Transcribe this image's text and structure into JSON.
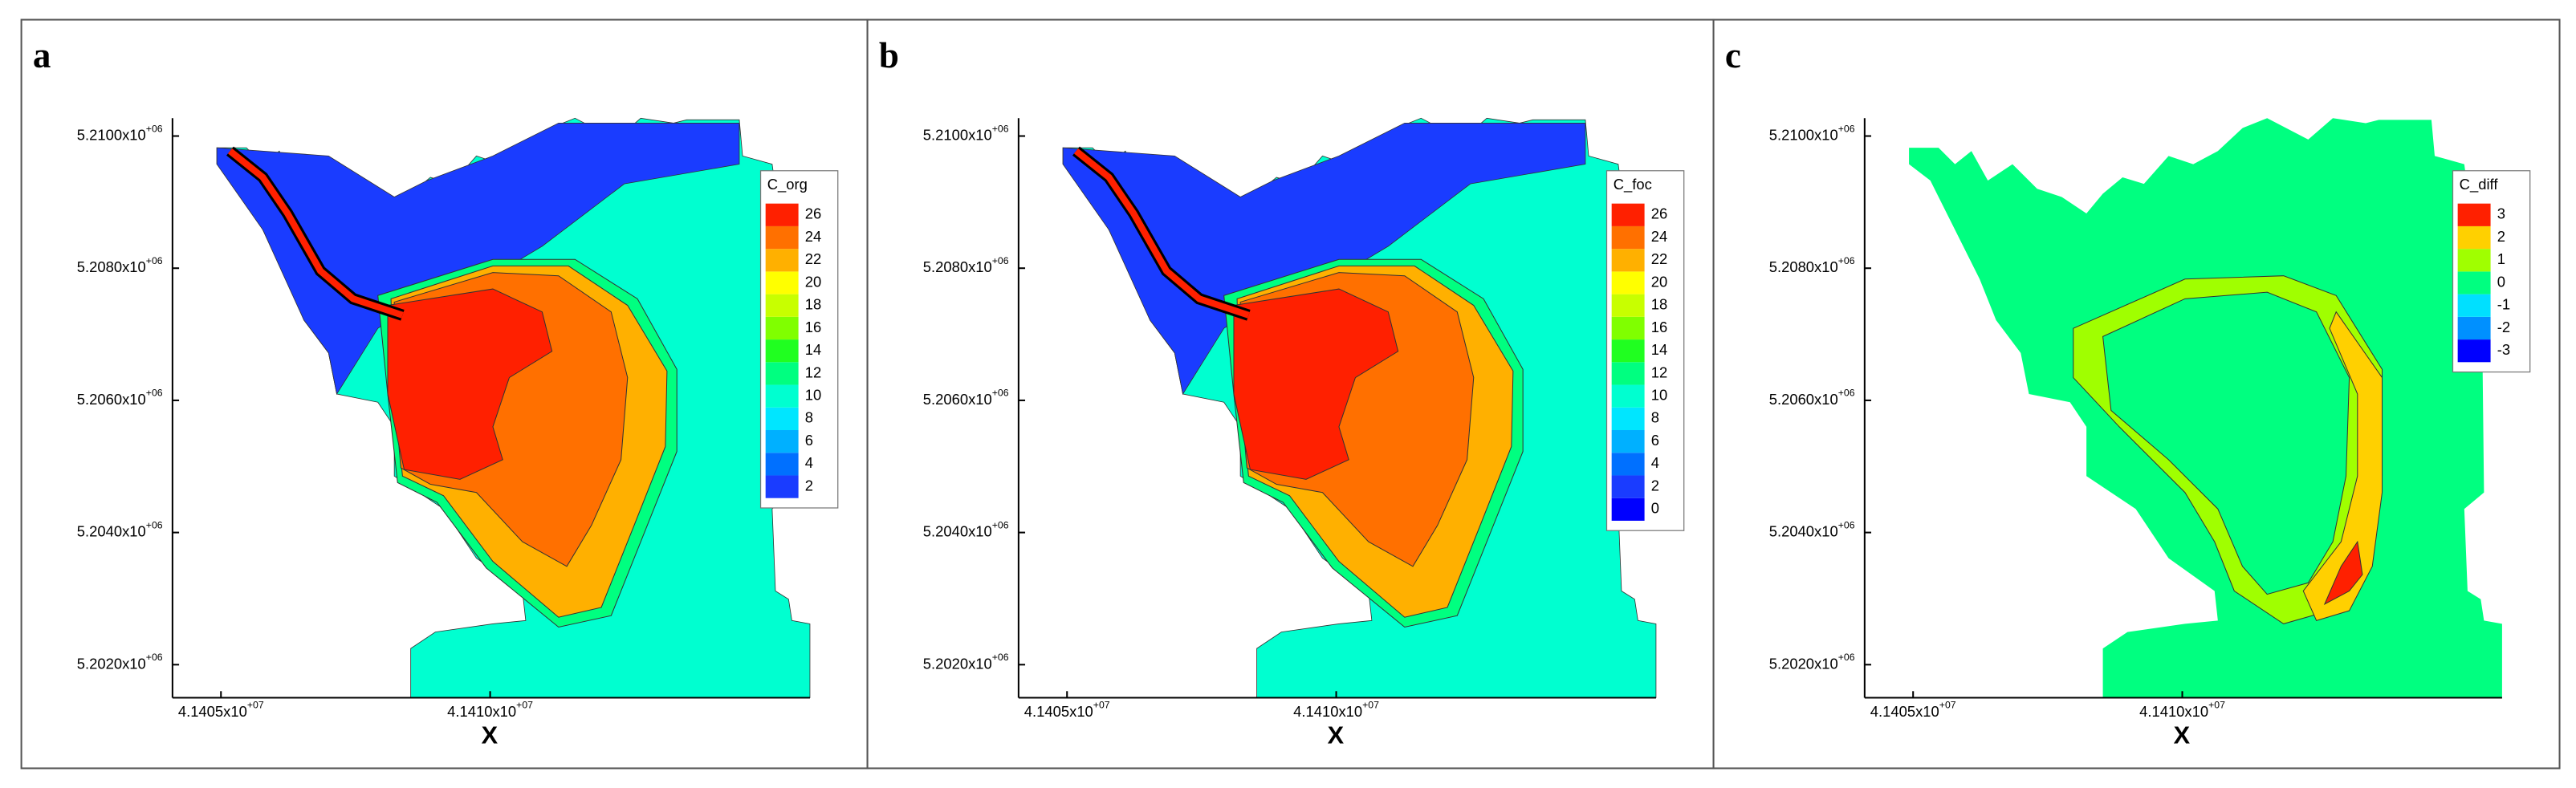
{
  "chart_data": [
    {
      "type": "contour",
      "panel_label": "a",
      "xlabel": "X",
      "xlim": [
        41404100,
        41415940
      ],
      "ylim": [
        5201500,
        5210270
      ],
      "xticks": [
        {
          "value": 41405000,
          "label": "4.1405x10+07"
        },
        {
          "value": 41410000,
          "label": "4.1410x10+07"
        }
      ],
      "yticks": [
        {
          "value": 5202000,
          "label": "5.2020x10+06"
        },
        {
          "value": 5204000,
          "label": "5.2040x10+06"
        },
        {
          "value": 5206000,
          "label": "5.2060x10+06"
        },
        {
          "value": 5208000,
          "label": "5.2080x10+06"
        },
        {
          "value": 5210000,
          "label": "5.2100x10+06"
        }
      ],
      "legend": {
        "title": "C_org",
        "levels": [
          2,
          4,
          6,
          8,
          10,
          12,
          14,
          16,
          18,
          20,
          22,
          24,
          26
        ],
        "colors": [
          "#1a3cff",
          "#0070ff",
          "#00b0ff",
          "#00e6ff",
          "#00ffd0",
          "#00ff80",
          "#20ff20",
          "#80ff00",
          "#c8ff00",
          "#ffff00",
          "#ffb000",
          "#ff7000",
          "#ff2000"
        ]
      }
    },
    {
      "type": "contour",
      "panel_label": "b",
      "xlabel": "X",
      "xlim": [
        41404100,
        41415940
      ],
      "ylim": [
        5201500,
        5210270
      ],
      "xticks": [
        {
          "value": 41405000,
          "label": "4.1405x10+07"
        },
        {
          "value": 41410000,
          "label": "4.1410x10+07"
        }
      ],
      "yticks": [
        {
          "value": 5202000,
          "label": "5.2020x10+06"
        },
        {
          "value": 5204000,
          "label": "5.2040x10+06"
        },
        {
          "value": 5206000,
          "label": "5.2060x10+06"
        },
        {
          "value": 5208000,
          "label": "5.2080x10+06"
        },
        {
          "value": 5210000,
          "label": "5.2100x10+06"
        }
      ],
      "legend": {
        "title": "C_foc",
        "levels": [
          0,
          2,
          4,
          6,
          8,
          10,
          12,
          14,
          16,
          18,
          20,
          22,
          24,
          26
        ],
        "colors": [
          "#0000ff",
          "#1a3cff",
          "#0070ff",
          "#00b0ff",
          "#00e6ff",
          "#00ffd0",
          "#00ff80",
          "#20ff20",
          "#80ff00",
          "#c8ff00",
          "#ffff00",
          "#ffb000",
          "#ff7000",
          "#ff2000"
        ]
      }
    },
    {
      "type": "contour",
      "panel_label": "c",
      "xlabel": "X",
      "xlim": [
        41404100,
        41415940
      ],
      "ylim": [
        5201500,
        5210270
      ],
      "xticks": [
        {
          "value": 41405000,
          "label": "4.1405x10+07"
        },
        {
          "value": 41410000,
          "label": "4.1410x10+07"
        }
      ],
      "yticks": [
        {
          "value": 5202000,
          "label": "5.2020x10+06"
        },
        {
          "value": 5204000,
          "label": "5.2040x10+06"
        },
        {
          "value": 5206000,
          "label": "5.2060x10+06"
        },
        {
          "value": 5208000,
          "label": "5.2080x10+06"
        },
        {
          "value": 5210000,
          "label": "5.2100x10+06"
        }
      ],
      "legend": {
        "title": "C_diff",
        "levels": [
          -3,
          -2,
          -1,
          0,
          1,
          2,
          3
        ],
        "colors": [
          "#0000ff",
          "#0090ff",
          "#00e0ff",
          "#00ff80",
          "#a0ff00",
          "#ffd000",
          "#ff2000"
        ]
      }
    }
  ]
}
